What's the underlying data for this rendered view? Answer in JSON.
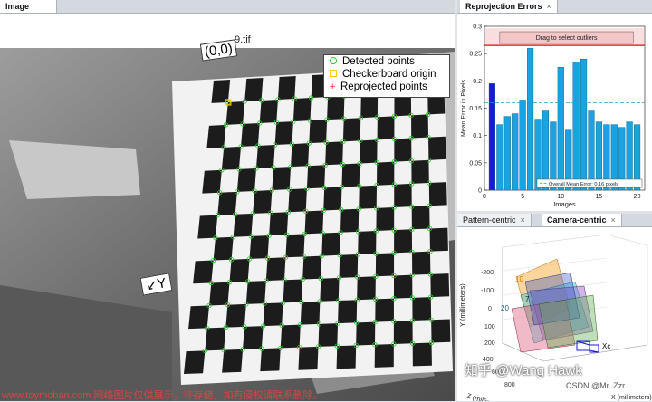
{
  "image_panel": {
    "tab": "Image",
    "file_label": "(0,0)",
    "file_suffix": "9.tif",
    "axis_label": "Y",
    "legend": [
      "Detected points",
      "Checkerboard origin",
      "Reprojected points"
    ],
    "colors": {
      "detected": "#22cc22",
      "origin": "#ffcc00",
      "reprojected": "#ff2222"
    }
  },
  "reprojection_panel": {
    "tab": "Reprojection Errors",
    "drag_label": "Drag to select outliers",
    "overall_label": "Overall Mean Error: 0.16 pixels"
  },
  "chart_data": {
    "type": "bar",
    "xlabel": "Images",
    "ylabel": "Mean Error in Pixels",
    "categories": [
      1,
      2,
      3,
      4,
      5,
      6,
      7,
      8,
      9,
      10,
      11,
      12,
      13,
      14,
      15,
      16,
      17,
      18,
      19,
      20
    ],
    "values": [
      0.195,
      0.12,
      0.135,
      0.14,
      0.165,
      0.26,
      0.13,
      0.145,
      0.125,
      0.225,
      0.11,
      0.235,
      0.24,
      0.145,
      0.125,
      0.12,
      0.12,
      0.115,
      0.125,
      0.12
    ],
    "highlight_index": 0,
    "mean": 0.16,
    "threshold": 0.265,
    "ylim": [
      0,
      0.3
    ],
    "yticks": [
      0,
      0.05,
      0.1,
      0.15,
      0.2,
      0.25,
      0.3
    ],
    "xlim": [
      0,
      21
    ],
    "xticks": [
      0,
      5,
      10,
      15,
      20
    ],
    "colors": {
      "bar": "#1aa3e0",
      "highlight": "#1a1ad6",
      "threshold": "#cc1111",
      "mean": "#2aa0cc"
    }
  },
  "extrinsics_panel": {
    "tabs": [
      "Pattern-centric",
      "Camera-centric"
    ],
    "active_tab": "Camera-centric",
    "y_axis_label": "Y (millimeters)",
    "z_axis_label": "Z (millimeters)",
    "x_axis_label": "X (millimeters)",
    "y_ticks": [
      "-200",
      "-100",
      "0",
      "100",
      "200"
    ],
    "z_ticks": [
      "400",
      "600",
      "800"
    ],
    "plane_labels": [
      "10",
      "7",
      "20"
    ],
    "camera_label": "Xc"
  },
  "watermarks": {
    "zhihu": "知乎 @Wang Hawk",
    "csdn": "CSDN @Mr. Zzr",
    "footer": "www.toymoban.com 网络图片仅供展示，非存储，如有侵权请联系删除。"
  }
}
